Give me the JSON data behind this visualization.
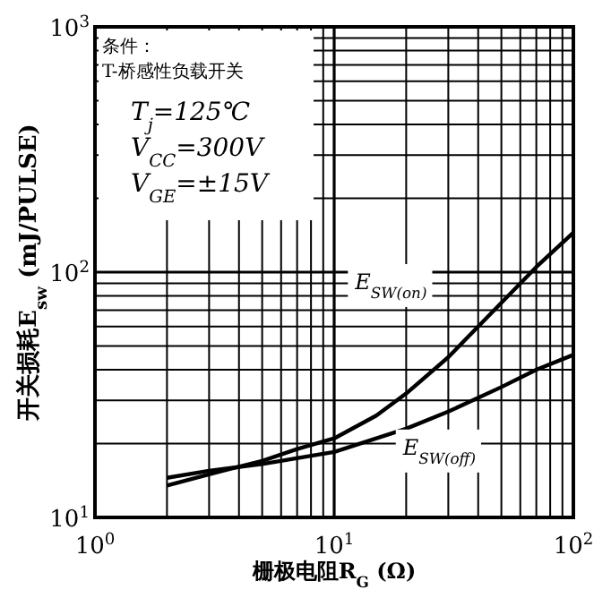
{
  "chart_data": {
    "type": "line",
    "xlabel": "栅极电阻R$_{G}$ (Ω)",
    "ylabel": "开关损耗E$_{sw}$ (mJ/PULSE)",
    "log": "xy",
    "grid": true,
    "line_style": "solid",
    "xlim": [
      1,
      100
    ],
    "xticks": [
      {
        "value": 1,
        "label": "10$^{0}$"
      },
      {
        "value": 10,
        "label": "10$^{1}$"
      },
      {
        "value": 100,
        "label": "10$^{2}$"
      }
    ],
    "ylim": [
      10,
      1000
    ],
    "yticks": [
      {
        "value": 10,
        "label": "10$^{1}$"
      },
      {
        "value": 100,
        "label": "10$^{2}$"
      },
      {
        "value": 1000,
        "label": "10$^{3}$"
      }
    ],
    "series": [
      {
        "name": "E$_{SW(on)}$",
        "color": "#000000",
        "x": [
          2,
          3,
          5,
          7,
          10,
          15,
          20,
          30,
          50,
          70,
          100
        ],
        "values": [
          13.5,
          15,
          17,
          19,
          21,
          26,
          32,
          45,
          75,
          105,
          145
        ]
      },
      {
        "name": "E$_{SW(off)}$",
        "color": "#000000",
        "x": [
          2,
          3,
          5,
          10,
          20,
          30,
          50,
          70,
          100
        ],
        "values": [
          14.5,
          15.5,
          16.5,
          18.5,
          23,
          27,
          34,
          40,
          46
        ]
      }
    ],
    "annotations": [
      "条件：",
      "T-桥感性负载开关",
      "T$_{j}$=125℃",
      "V$_{CC}$=300V",
      "V$_{GE}$=±15V"
    ]
  }
}
